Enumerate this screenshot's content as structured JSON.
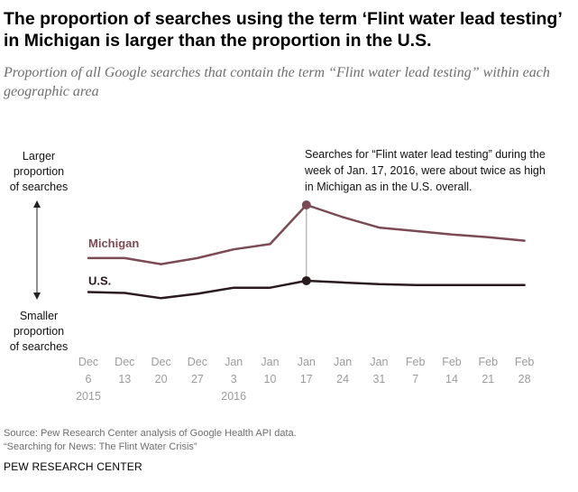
{
  "title": "The proportion of searches using the term ‘Flint water lead testing’ in Michigan is larger than the proportion in the U.S.",
  "subtitle": "Proportion of all Google searches that contain the term “Flint water lead testing” within each geographic area",
  "y_axis_top_label": [
    "Larger",
    "proportion",
    "of searches"
  ],
  "y_axis_bottom_label": [
    "Smaller",
    "proportion",
    "of searches"
  ],
  "annotation": [
    "Searches for “Flint water lead testing” during the",
    "week of Jan. 17, 2016, were about twice as high",
    "in Michigan as in the U.S. overall."
  ],
  "source_lines": [
    "Source: Pew Research Center analysis of Google Health API data.",
    "“Searching for News: The Flint Water Crisis”"
  ],
  "brand": "PEW RESEARCH CENTER",
  "colors": {
    "michigan": "#7b4a55",
    "us": "#2b1a1e",
    "tick_text": "#9b9b9b",
    "axis": "#c8c8c8"
  },
  "chart_data": {
    "type": "line",
    "x": [
      "Dec 6",
      "Dec 13",
      "Dec 20",
      "Dec 27",
      "Jan 3",
      "Jan 10",
      "Jan 17",
      "Jan 24",
      "Jan 31",
      "Feb 7",
      "Feb 14",
      "Feb 21",
      "Feb 28"
    ],
    "tick_labels": [
      [
        "Dec",
        "6"
      ],
      [
        "Dec",
        "13"
      ],
      [
        "Dec",
        "20"
      ],
      [
        "Dec",
        "27"
      ],
      [
        "Jan",
        "3"
      ],
      [
        "Jan",
        "10"
      ],
      [
        "Jan",
        "17"
      ],
      [
        "Jan",
        "24"
      ],
      [
        "Jan",
        "31"
      ],
      [
        "Feb",
        "7"
      ],
      [
        "Feb",
        "14"
      ],
      [
        "Feb",
        "21"
      ],
      [
        "Feb",
        "28"
      ]
    ],
    "year_labels": [
      {
        "index": 0,
        "text": "2015"
      },
      {
        "index": 4,
        "text": "2016"
      }
    ],
    "series": [
      {
        "name": "Michigan",
        "values": [
          0.39,
          0.39,
          0.32,
          0.39,
          0.49,
          0.55,
          1.0,
          0.86,
          0.74,
          0.7,
          0.66,
          0.63,
          0.59
        ]
      },
      {
        "name": "U.S.",
        "values": [
          0.0,
          -0.01,
          -0.07,
          -0.02,
          0.05,
          0.05,
          0.13,
          0.11,
          0.09,
          0.08,
          0.08,
          0.08,
          0.08
        ]
      }
    ],
    "highlight_index": 6,
    "grid": false,
    "y_axis_numeric_labels": false
  }
}
